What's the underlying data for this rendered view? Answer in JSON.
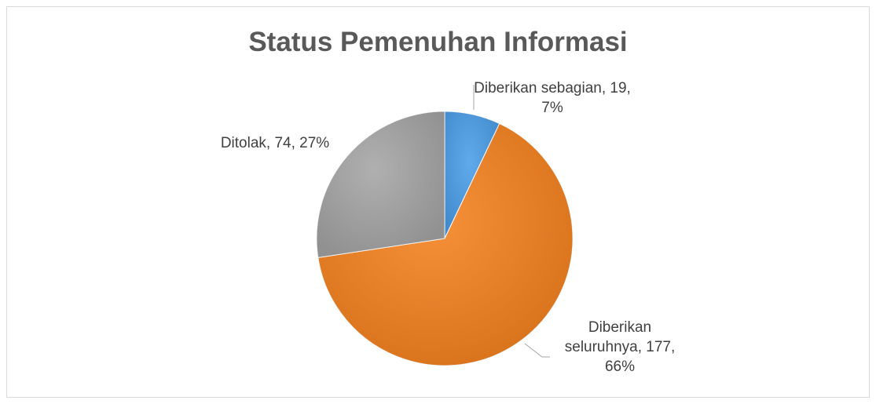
{
  "chart_data": {
    "type": "pie",
    "title": "Status Pemenuhan Informasi",
    "categories": [
      "Diberikan sebagian",
      "Diberikan seluruhnya",
      "Ditolak"
    ],
    "values": [
      19,
      177,
      74
    ],
    "value_labels": [
      "Diberikan sebagian, 19, 7%",
      "Diberikan seluruhnya, 177, 66%",
      "Ditolak, 74, 27%"
    ],
    "colors": [
      "#4a9ee8",
      "#f5821f",
      "#a5a5a5"
    ]
  }
}
